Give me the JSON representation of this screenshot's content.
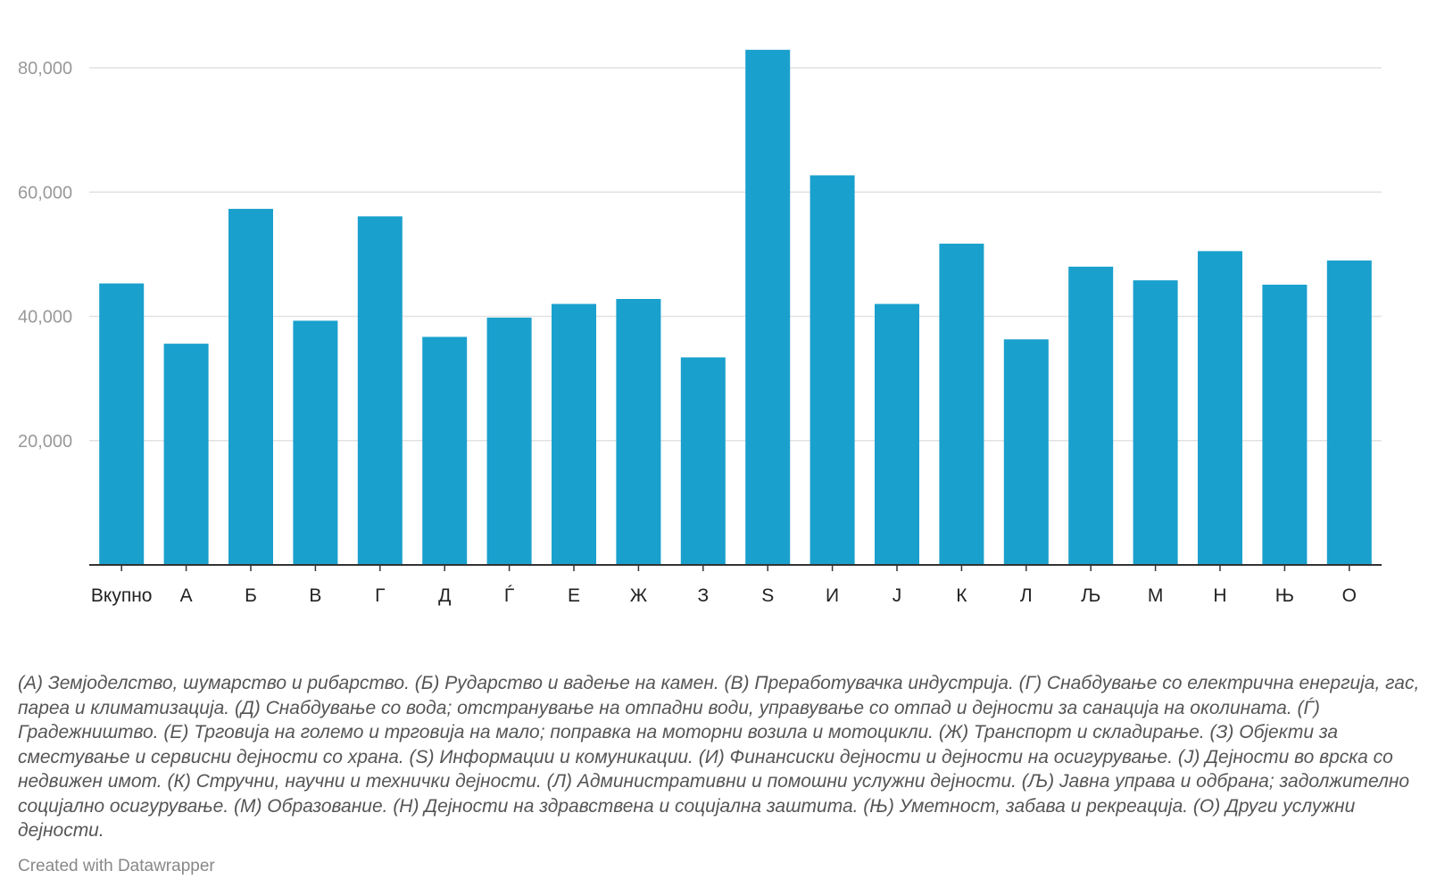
{
  "chart_data": {
    "type": "bar",
    "categories": [
      "Вкупно",
      "А",
      "Б",
      "В",
      "Г",
      "Д",
      "Ѓ",
      "Е",
      "Ж",
      "З",
      "S",
      "И",
      "Ј",
      "К",
      "Л",
      "Љ",
      "М",
      "Н",
      "Њ",
      "О"
    ],
    "values": [
      45300,
      35600,
      57300,
      39300,
      56100,
      36700,
      39800,
      42000,
      42800,
      33400,
      82900,
      62700,
      42000,
      51700,
      36300,
      48000,
      45800,
      50500,
      45100,
      49000
    ],
    "ylim": [
      0,
      85000
    ],
    "yticks": [
      20000,
      40000,
      60000,
      80000
    ],
    "ytick_labels": [
      "20,000",
      "40,000",
      "60,000",
      "80,000"
    ],
    "grid": true,
    "colors": {
      "bar": "#1aa0cd",
      "grid": "#e2e2e2",
      "axis": "#333333",
      "tick_label": "#999999",
      "category_label": "#222222"
    }
  },
  "footnote": "(А) Земјоделство, шумарство и рибарство. (Б) Рударство и вадење на камен. (В) Преработувачка индустрија. (Г) Снабдување со електрична енергија, гас, пареа и климатизација. (Д) Снабдување со вода; отстранување на отпадни води, управување со отпад и дејности за санација на околината. (Ѓ) Градежништво. (Е) Трговија на големо и трговија на мало; поправка на моторни возила и мотоцикли. (Ж) Транспорт и складирање. (З) Објекти за сместување и сервисни дејности со храна. (S) Информации и комуникации. (И) Финансиски дејности и дејности на осигурување. (Ј) Дејности во врска со недвижен имот. (К) Стручни, научни и технички дејности. (Л) Административни и помошни услужни дејности. (Љ) Јавна управа и одбрана; задолжително социјално осигурување. (М) Образование. (Н) Дејности на здравствена и социјална заштита. (Њ) Уметност, забава и рекреација. (О) Други услужни дејности.",
  "credit": "Created with Datawrapper"
}
